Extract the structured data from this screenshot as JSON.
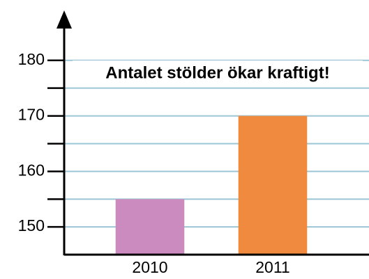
{
  "chart_data": {
    "type": "bar",
    "title": "Antalet stölder ökar kraftigt!",
    "categories": [
      "2010",
      "2011"
    ],
    "values": [
      155,
      170
    ],
    "colors": [
      "#cc8bbf",
      "#f08a3e"
    ],
    "ylim": [
      145,
      189
    ],
    "yticks": [
      150,
      160,
      170,
      180
    ],
    "minor_yticks": [
      155,
      165,
      175
    ],
    "grid": true
  }
}
